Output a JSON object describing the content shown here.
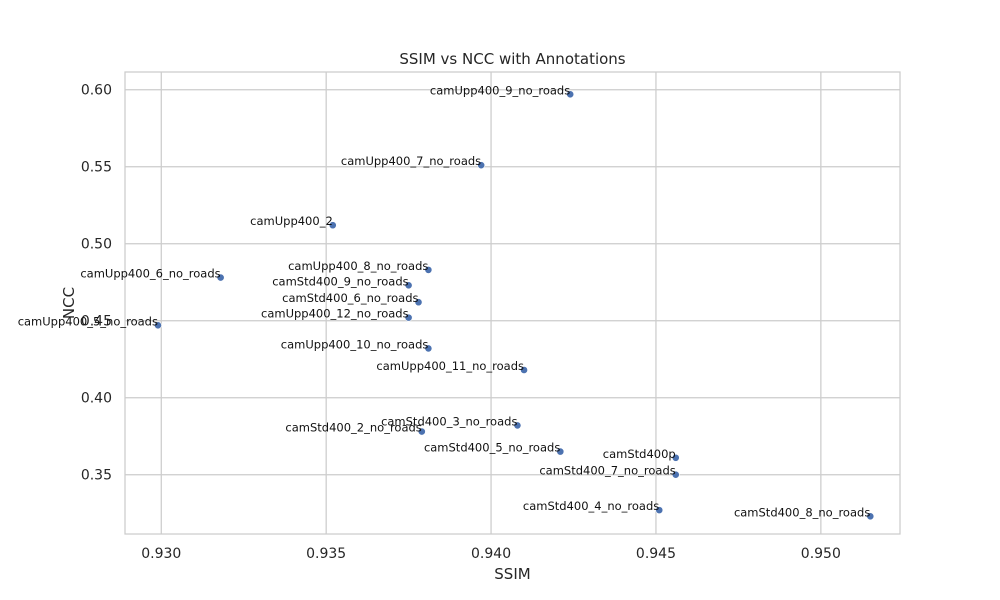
{
  "chart_data": {
    "type": "scatter",
    "title": "SSIM vs NCC with Annotations",
    "xlabel": "SSIM",
    "ylabel": "NCC",
    "xlim": [
      0.9289,
      0.9524
    ],
    "ylim": [
      0.3115,
      0.6115
    ],
    "xticks": [
      0.93,
      0.935,
      0.94,
      0.945,
      0.95
    ],
    "xtick_labels": [
      "0.930",
      "0.935",
      "0.940",
      "0.945",
      "0.950"
    ],
    "yticks": [
      0.35,
      0.4,
      0.45,
      0.5,
      0.55,
      0.6
    ],
    "ytick_labels": [
      "0.35",
      "0.40",
      "0.45",
      "0.50",
      "0.55",
      "0.60"
    ],
    "grid": true,
    "point_color": "#4c72b0",
    "points": [
      {
        "label": "camUpp400_9_no_roads",
        "x": 0.9424,
        "y": 0.597
      },
      {
        "label": "camUpp400_7_no_roads",
        "x": 0.9397,
        "y": 0.551
      },
      {
        "label": "camUpp400_2",
        "x": 0.9352,
        "y": 0.512
      },
      {
        "label": "camUpp400_8_no_roads",
        "x": 0.9381,
        "y": 0.483
      },
      {
        "label": "camUpp400_6_no_roads",
        "x": 0.9318,
        "y": 0.478
      },
      {
        "label": "camStd400_9_no_roads",
        "x": 0.9375,
        "y": 0.473
      },
      {
        "label": "camStd400_6_no_roads",
        "x": 0.9378,
        "y": 0.462
      },
      {
        "label": "camUpp400_12_no_roads",
        "x": 0.9375,
        "y": 0.452
      },
      {
        "label": "camUpp400_5_no_roads",
        "x": 0.9299,
        "y": 0.447
      },
      {
        "label": "camUpp400_10_no_roads",
        "x": 0.9381,
        "y": 0.432
      },
      {
        "label": "camUpp400_11_no_roads",
        "x": 0.941,
        "y": 0.418
      },
      {
        "label": "camStd400_3_no_roads",
        "x": 0.9408,
        "y": 0.382
      },
      {
        "label": "camStd400_2_no_roads",
        "x": 0.9379,
        "y": 0.378
      },
      {
        "label": "camStd400_5_no_roads",
        "x": 0.9421,
        "y": 0.365
      },
      {
        "label": "camStd400p",
        "x": 0.9456,
        "y": 0.361
      },
      {
        "label": "camStd400_7_no_roads",
        "x": 0.9456,
        "y": 0.35
      },
      {
        "label": "camStd400_4_no_roads",
        "x": 0.9451,
        "y": 0.327
      },
      {
        "label": "camStd400_8_no_roads",
        "x": 0.9515,
        "y": 0.323
      }
    ]
  }
}
